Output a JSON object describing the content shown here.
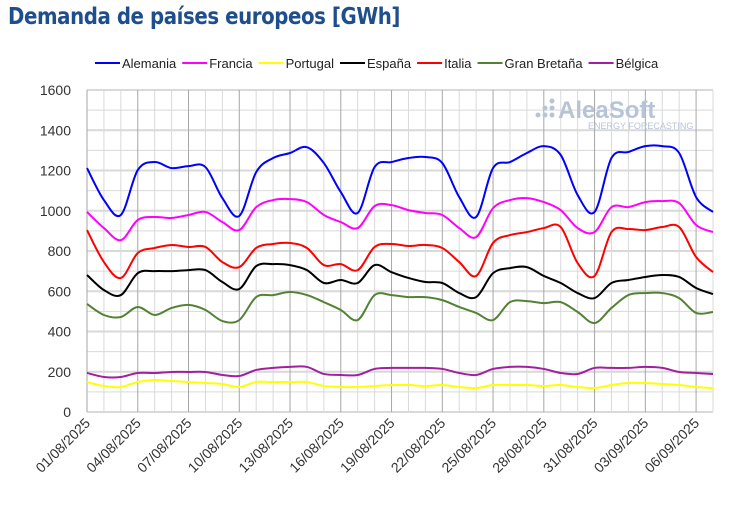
{
  "chart_data": {
    "type": "line",
    "title": "Demanda de países europeos [GWh]",
    "xlabel": "",
    "ylabel": "",
    "ylim": [
      0,
      1600
    ],
    "yticks": [
      0,
      200,
      400,
      600,
      800,
      1000,
      1200,
      1400,
      1600
    ],
    "grid": true,
    "legend_placement": "top",
    "x": [
      "01/08/2025",
      "02/08/2025",
      "03/08/2025",
      "04/08/2025",
      "05/08/2025",
      "06/08/2025",
      "07/08/2025",
      "08/08/2025",
      "09/08/2025",
      "10/08/2025",
      "11/08/2025",
      "12/08/2025",
      "13/08/2025",
      "14/08/2025",
      "15/08/2025",
      "16/08/2025",
      "17/08/2025",
      "18/08/2025",
      "19/08/2025",
      "20/08/2025",
      "21/08/2025",
      "22/08/2025",
      "23/08/2025",
      "24/08/2025",
      "25/08/2025",
      "26/08/2025",
      "27/08/2025",
      "28/08/2025",
      "29/08/2025",
      "30/08/2025",
      "31/08/2025",
      "01/09/2025",
      "02/09/2025",
      "03/09/2025",
      "04/09/2025",
      "05/09/2025",
      "06/09/2025",
      "07/09/2025"
    ],
    "xtick_labels": [
      "01/08/2025",
      "04/08/2025",
      "07/08/2025",
      "10/08/2025",
      "13/08/2025",
      "16/08/2025",
      "19/08/2025",
      "22/08/2025",
      "25/08/2025",
      "28/08/2025",
      "31/08/2025",
      "03/09/2025",
      "06/09/2025"
    ],
    "series": [
      {
        "name": "Alemania",
        "color": "#0000ff",
        "values": [
          1212,
          1053,
          979,
          1202,
          1242,
          1212,
          1222,
          1217,
          1063,
          974,
          1192,
          1262,
          1287,
          1316,
          1237,
          1093,
          989,
          1217,
          1242,
          1262,
          1267,
          1237,
          1068,
          969,
          1212,
          1242,
          1287,
          1321,
          1277,
          1078,
          994,
          1262,
          1292,
          1321,
          1321,
          1287,
          1068,
          994
        ]
      },
      {
        "name": "Francia",
        "color": "#ff00ff",
        "values": [
          994,
          914,
          854,
          954,
          969,
          964,
          979,
          994,
          944,
          904,
          1018,
          1053,
          1058,
          1043,
          979,
          944,
          914,
          1023,
          1028,
          1003,
          989,
          979,
          914,
          869,
          1013,
          1053,
          1063,
          1043,
          1003,
          914,
          894,
          1018,
          1018,
          1043,
          1048,
          1038,
          929,
          894
        ]
      },
      {
        "name": "Portugal",
        "color": "#ffff00",
        "values": [
          149,
          129,
          124,
          149,
          159,
          154,
          149,
          144,
          139,
          124,
          149,
          149,
          149,
          149,
          129,
          124,
          124,
          129,
          134,
          134,
          129,
          134,
          124,
          119,
          134,
          134,
          134,
          129,
          134,
          124,
          119,
          134,
          144,
          144,
          139,
          134,
          124,
          119
        ]
      },
      {
        "name": "España",
        "color": "#000000",
        "values": [
          681,
          606,
          581,
          690,
          700,
          700,
          705,
          705,
          646,
          611,
          725,
          735,
          730,
          705,
          641,
          656,
          641,
          730,
          695,
          666,
          646,
          641,
          591,
          571,
          690,
          715,
          720,
          676,
          641,
          591,
          566,
          641,
          656,
          671,
          681,
          671,
          616,
          586
        ]
      },
      {
        "name": "Italia",
        "color": "#ff0000",
        "values": [
          904,
          745,
          666,
          790,
          815,
          830,
          820,
          820,
          745,
          720,
          815,
          835,
          840,
          815,
          730,
          735,
          705,
          820,
          835,
          825,
          830,
          815,
          745,
          676,
          840,
          879,
          894,
          914,
          919,
          740,
          676,
          894,
          909,
          904,
          919,
          919,
          770,
          695
        ]
      },
      {
        "name": "Gran Bretaña",
        "color": "#548235",
        "values": [
          537,
          482,
          472,
          522,
          482,
          517,
          532,
          507,
          452,
          457,
          571,
          581,
          596,
          581,
          546,
          507,
          457,
          581,
          581,
          571,
          571,
          556,
          522,
          492,
          457,
          546,
          551,
          541,
          546,
          497,
          442,
          517,
          581,
          591,
          591,
          566,
          492,
          497
        ]
      },
      {
        "name": "Bélgica",
        "color": "#a020a0",
        "values": [
          194,
          174,
          174,
          194,
          194,
          199,
          199,
          199,
          184,
          179,
          209,
          219,
          224,
          224,
          189,
          184,
          184,
          214,
          219,
          219,
          219,
          214,
          194,
          184,
          214,
          224,
          224,
          214,
          194,
          189,
          219,
          219,
          219,
          224,
          219,
          199,
          194,
          189
        ]
      }
    ],
    "watermark": {
      "brand": "AleaSoft",
      "tagline": "ENERGY FORECASTING"
    }
  }
}
